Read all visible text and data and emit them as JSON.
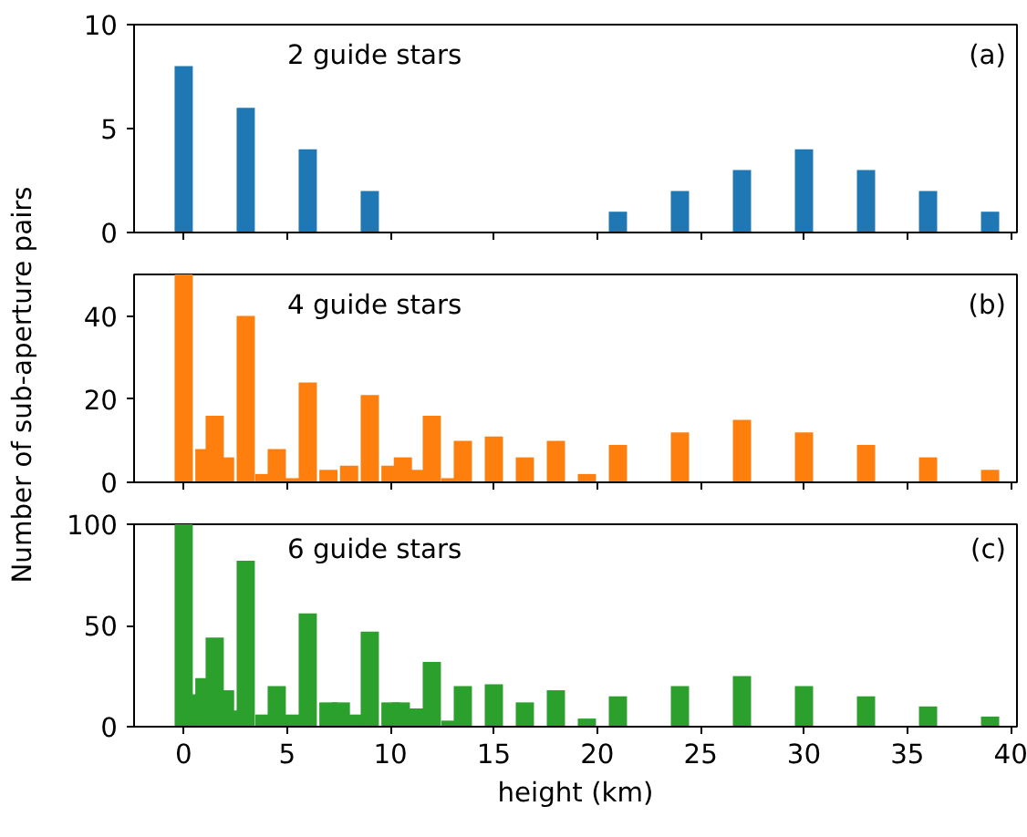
{
  "chart_data": [
    {
      "type": "bar",
      "annotations": [
        "2 guide stars",
        "(a)"
      ],
      "color": "#1f77b4",
      "x": [
        0,
        3,
        6,
        9,
        21,
        24,
        27,
        30,
        33,
        36,
        39
      ],
      "values": [
        8,
        6,
        4,
        2,
        1,
        2,
        3,
        4,
        3,
        2,
        1
      ],
      "xlim": [
        -2.4,
        40.3
      ],
      "ylim": [
        0,
        10
      ],
      "xticks": [
        0,
        5,
        10,
        15,
        20,
        25,
        30,
        35,
        40
      ],
      "yticks": [
        0,
        5,
        10
      ],
      "tick_labels": "y",
      "grid": false
    },
    {
      "type": "bar",
      "annotations": [
        "4 guide stars",
        "(b)"
      ],
      "color": "#ff7f0e",
      "ylabel": "Number of sub-aperture pairs",
      "x": [
        0,
        1.0,
        1.5,
        2.0,
        3,
        3.9,
        4.5,
        5.2,
        6,
        7.0,
        8.0,
        9,
        10.0,
        10.6,
        11.2,
        12,
        12.9,
        13.5,
        15,
        16.5,
        18,
        19.5,
        21,
        24,
        27,
        30,
        33,
        36,
        39
      ],
      "values": [
        50,
        8,
        16,
        6,
        40,
        2,
        8,
        1,
        24,
        3,
        4,
        21,
        4,
        6,
        3,
        16,
        1,
        10,
        11,
        6,
        10,
        2,
        9,
        12,
        15,
        12,
        9,
        6,
        3
      ],
      "xlim": [
        -2.4,
        40.3
      ],
      "ylim": [
        0,
        50
      ],
      "xticks": [
        0,
        5,
        10,
        15,
        20,
        25,
        30,
        35,
        40
      ],
      "yticks": [
        0,
        20,
        40
      ],
      "tick_labels": "y",
      "grid": false
    },
    {
      "type": "bar",
      "annotations": [
        "6 guide stars",
        "(c)"
      ],
      "color": "#2ca02c",
      "xlabel": "height (km)",
      "x": [
        0,
        0.5,
        1.0,
        1.5,
        2.0,
        2.5,
        3,
        3.5,
        3.9,
        4.5,
        5.2,
        6,
        6.6,
        7.0,
        7.6,
        8.2,
        9,
        10.0,
        10.5,
        11.2,
        12,
        12.9,
        13.5,
        15,
        16.5,
        18,
        19.5,
        21,
        24,
        27,
        30,
        33,
        36,
        39
      ],
      "values": [
        100,
        16,
        24,
        44,
        18,
        8,
        82,
        null,
        6,
        20,
        6,
        56,
        null,
        12,
        12,
        6,
        47,
        12,
        12,
        9,
        32,
        3,
        20,
        21,
        12,
        18,
        4,
        15,
        20,
        25,
        20,
        15,
        10,
        5
      ],
      "xlim": [
        -2.4,
        40.3
      ],
      "ylim": [
        0,
        100
      ],
      "xticks": [
        0,
        5,
        10,
        15,
        20,
        25,
        30,
        35,
        40
      ],
      "yticks": [
        0,
        50,
        100
      ],
      "grid": false
    }
  ]
}
